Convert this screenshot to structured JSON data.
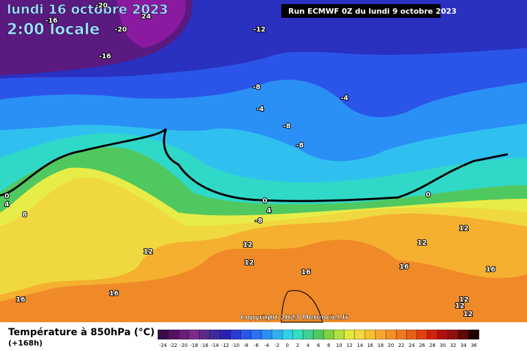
{
  "header": {
    "date": "lundi 16 octobre 2023",
    "time": "2:00 locale",
    "run": "Run ECMWF 0Z du lundi 9 octobre 2023"
  },
  "copyright": "Copyright 2023 Meteociel.fr",
  "legend": {
    "title": "Température à 850hPa (°C)",
    "lead": "(+168h)",
    "ticks": [
      -24,
      -22,
      -20,
      -18,
      -16,
      -14,
      -12,
      -10,
      -8,
      -6,
      -4,
      -2,
      0,
      2,
      4,
      6,
      8,
      10,
      12,
      14,
      16,
      18,
      20,
      22,
      24,
      26,
      28,
      30,
      32,
      34,
      36
    ],
    "colors": [
      "#3a0a4a",
      "#55105f",
      "#6a1a7a",
      "#7d2a8c",
      "#5a2a8a",
      "#3a2a9a",
      "#2a20b0",
      "#2a3ad0",
      "#2a55e8",
      "#2a70f0",
      "#2a90f5",
      "#30b0f0",
      "#30d0e8",
      "#30e0c0",
      "#40d090",
      "#50c860",
      "#80d040",
      "#b0e040",
      "#e0e840",
      "#f0d840",
      "#f5c030",
      "#f5a830",
      "#f59028",
      "#f07820",
      "#e86018",
      "#e04010",
      "#d02010",
      "#b01010",
      "#901010",
      "#600808",
      "#200000"
    ]
  },
  "contour_labels": [
    -20,
    -16,
    -20,
    24,
    -12,
    -16,
    -8,
    -4,
    -4,
    -8,
    -8,
    0,
    4,
    8,
    0,
    4,
    -8,
    0,
    12,
    12,
    12,
    12,
    12,
    16,
    16,
    16,
    16,
    16,
    12,
    12,
    12
  ]
}
